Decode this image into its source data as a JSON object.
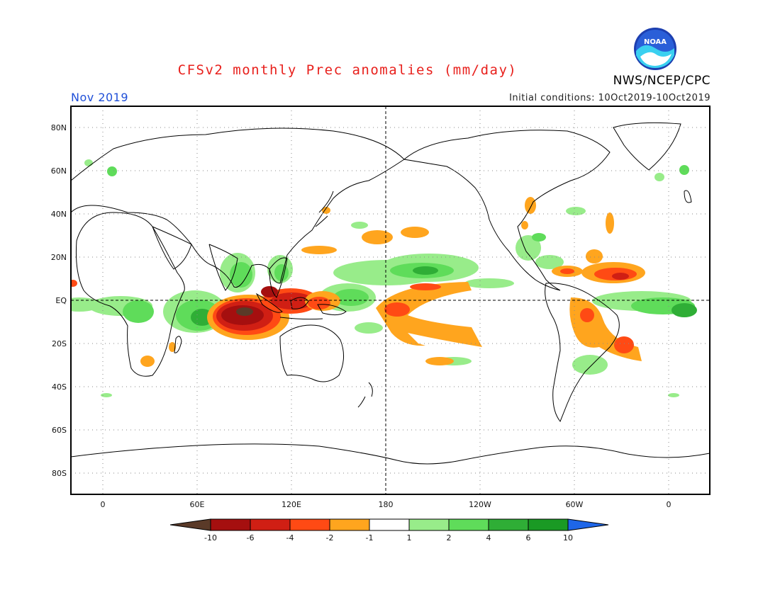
{
  "header": {
    "title": "CFSv2 monthly Prec anomalies (mm/day)",
    "period": "Nov 2019",
    "initial_conditions": "Initial conditions: 10Oct2019-10Oct2019",
    "agency": "NWS/NCEP/CPC",
    "logo_text": "NOAA",
    "logo_icon": "noaa-logo-icon"
  },
  "map": {
    "lat_labels": [
      "80N",
      "60N",
      "40N",
      "20N",
      "EQ",
      "20S",
      "40S",
      "60S",
      "80S"
    ],
    "lon_labels": [
      "0",
      "60E",
      "120E",
      "180",
      "120W",
      "60W",
      "0"
    ],
    "lat_values": [
      80,
      60,
      40,
      20,
      0,
      -20,
      -40,
      -60,
      -80
    ],
    "lon_values": [
      0,
      60,
      120,
      180,
      240,
      300,
      360
    ],
    "lat_range": [
      -90,
      90
    ],
    "lon_range": [
      -20,
      380
    ],
    "gridlines": "dotted",
    "dashed_lines": [
      "equator",
      "dateline"
    ]
  },
  "legend": {
    "tick_labels": [
      "-10",
      "-6",
      "-4",
      "-2",
      "-1",
      "1",
      "2",
      "4",
      "6",
      "10"
    ],
    "colors": [
      "#5a3a28",
      "#a50f0f",
      "#d01f14",
      "#ff4a14",
      "#ffa51e",
      "#ffffff",
      "#98ec8a",
      "#5fdc5a",
      "#2fae36",
      "#1a9a24",
      "#1e66e8"
    ]
  },
  "colors": {
    "neg_strong": "#a50f0f",
    "neg_mid": "#d01f14",
    "neg_weak": "#ff4a14",
    "neg_light": "#ffa51e",
    "pos_light": "#98ec8a",
    "pos_mid": "#5fdc5a",
    "pos_strong": "#2fae36"
  }
}
